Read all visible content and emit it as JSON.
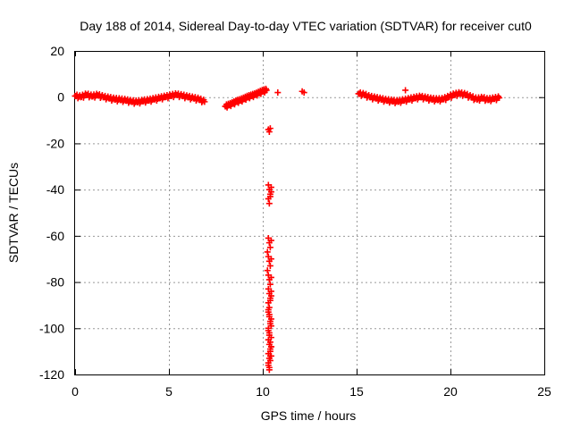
{
  "chart_data": {
    "type": "scatter",
    "title": "Day 188 of 2014, Sidereal Day-to-day VTEC variation (SDTVAR) for receiver cut0",
    "xlabel": "GPS time / hours",
    "ylabel": "SDTVAR / TECUs",
    "xlim": [
      0,
      25
    ],
    "ylim": [
      -120,
      20
    ],
    "xticks": [
      0,
      5,
      10,
      15,
      20,
      25
    ],
    "yticks": [
      20,
      0,
      -20,
      -40,
      -60,
      -80,
      -100,
      -120
    ],
    "grid": true,
    "marker": "+",
    "color": "#ff0000",
    "segments": [
      {
        "x": [
          0.0,
          0.3,
          0.6,
          0.9,
          1.2,
          1.5,
          1.8,
          2.1,
          2.4,
          2.7,
          3.0,
          3.3,
          3.6,
          3.9,
          4.2,
          4.5,
          4.8,
          5.1,
          5.4,
          5.7,
          6.0,
          6.3,
          6.6,
          6.9
        ],
        "y": [
          0.5,
          0.0,
          1.0,
          0.3,
          0.8,
          0.0,
          -0.5,
          -1.0,
          -1.2,
          -1.5,
          -2.0,
          -2.2,
          -1.8,
          -1.5,
          -1.0,
          -0.5,
          0.0,
          0.5,
          1.0,
          0.5,
          0.0,
          -0.5,
          -1.0,
          -2.0
        ]
      },
      {
        "x": [
          8.0,
          8.2,
          8.4,
          8.6,
          8.8,
          9.0,
          9.2,
          9.4,
          9.6,
          9.8,
          10.0,
          10.2
        ],
        "y": [
          -4.0,
          -3.5,
          -2.8,
          -2.0,
          -1.5,
          -0.8,
          0.0,
          0.5,
          1.0,
          1.8,
          2.5,
          3.0
        ]
      },
      {
        "x": [
          10.3,
          10.35,
          10.4,
          10.3,
          10.35,
          10.4,
          10.45,
          10.3,
          10.35,
          10.4,
          10.45,
          10.3,
          10.35,
          10.4,
          10.45,
          10.25,
          10.3,
          10.35,
          10.4,
          10.45,
          10.25,
          10.3,
          10.35,
          10.4,
          10.45,
          10.3,
          10.35,
          10.4,
          10.45,
          10.3,
          10.35,
          10.4,
          10.45,
          10.3,
          10.35,
          10.4,
          10.45,
          10.3,
          10.35,
          10.4,
          10.45,
          10.3,
          10.35,
          10.4,
          10.45,
          10.3,
          10.35,
          10.4,
          10.45,
          10.3,
          10.35,
          10.4,
          10.45,
          10.3,
          10.35,
          10.4,
          10.45,
          10.3,
          10.35,
          10.4,
          10.3,
          10.35
        ],
        "y": [
          -14,
          -15,
          -13.5,
          -38,
          -40,
          -42,
          -39,
          -44,
          -46,
          -43,
          -41,
          -61,
          -63,
          -65,
          -62,
          -67,
          -69,
          -71,
          -73,
          -70,
          -75,
          -77,
          -79,
          -81,
          -78,
          -83,
          -85,
          -87,
          -84,
          -89,
          -91,
          -88,
          -86,
          -93,
          -95,
          -97,
          -99,
          -101,
          -103,
          -98,
          -96,
          -105,
          -107,
          -109,
          -104,
          -111,
          -113,
          -110,
          -108,
          -115,
          -117,
          -114,
          -112,
          -100,
          -102,
          -106,
          -108,
          -116,
          -118,
          -112,
          -92,
          -94
        ]
      },
      {
        "x": [
          10.8,
          12.1,
          12.2,
          17.6
        ],
        "y": [
          2.0,
          2.5,
          2.0,
          3.0
        ]
      },
      {
        "x": [
          15.1,
          15.4,
          15.7,
          16.0,
          16.3,
          16.6,
          16.9,
          17.2,
          17.5,
          17.8,
          18.1,
          18.4,
          18.7,
          19.0,
          19.3,
          19.6,
          19.9,
          20.2,
          20.5,
          20.8,
          21.1,
          21.4,
          21.7,
          22.0,
          22.3,
          22.6
        ],
        "y": [
          1.5,
          1.0,
          0.0,
          -0.5,
          -1.0,
          -1.5,
          -1.8,
          -2.0,
          -1.5,
          -1.0,
          -0.5,
          0.0,
          -0.5,
          -1.0,
          -1.2,
          -1.0,
          0.0,
          1.0,
          1.5,
          1.0,
          0.0,
          -1.0,
          -0.5,
          -1.2,
          -0.8,
          -0.3
        ]
      }
    ]
  }
}
